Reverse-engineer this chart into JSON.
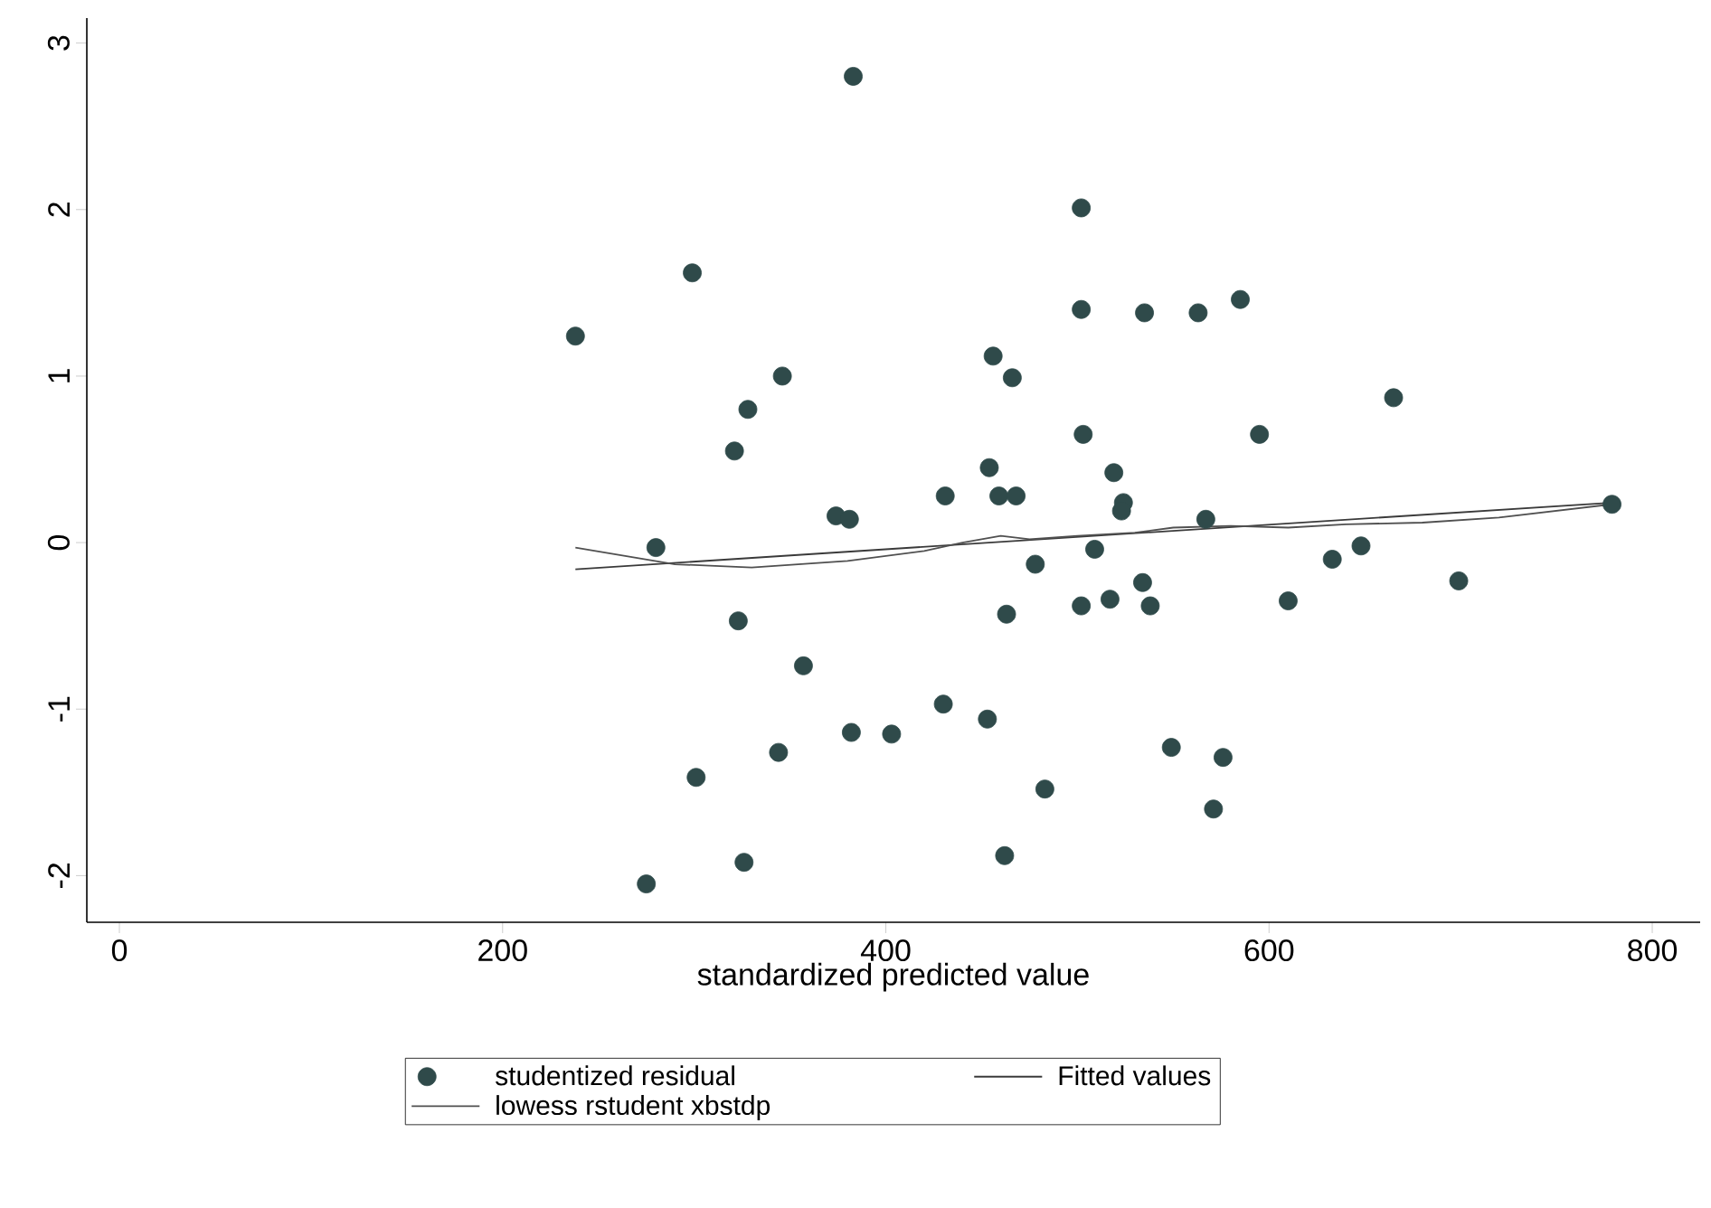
{
  "chart_data": {
    "type": "scatter",
    "xlabel": "standardized predicted value",
    "xlim": [
      -17,
      825
    ],
    "ylim": [
      -2.28,
      3.15
    ],
    "xticks": [
      0,
      200,
      400,
      600,
      800
    ],
    "yticks": [
      -2,
      -1,
      0,
      1,
      2,
      3
    ],
    "legend": "bottom",
    "grid": false,
    "series": [
      {
        "name": "studentized residual",
        "marker": "circle",
        "color": "#2f4a4a",
        "x": [
          238,
          299,
          346,
          328,
          321,
          280,
          323,
          357,
          344,
          301,
          326,
          275,
          383,
          502,
          502,
          456,
          466,
          503,
          454,
          431,
          459,
          468,
          374,
          381,
          519,
          524,
          523,
          509,
          478,
          502,
          517,
          463,
          382,
          403,
          430,
          453,
          483,
          462,
          535,
          563,
          585,
          534,
          538,
          567,
          549,
          576,
          571,
          595,
          665,
          779,
          633,
          648,
          699,
          610
        ],
        "values": [
          1.24,
          1.62,
          1.0,
          0.8,
          0.55,
          -0.03,
          -0.47,
          -0.74,
          -1.26,
          -1.41,
          -1.92,
          -2.05,
          2.8,
          2.01,
          1.4,
          1.12,
          0.99,
          0.65,
          0.45,
          0.28,
          0.28,
          0.28,
          0.16,
          0.14,
          0.42,
          0.24,
          0.19,
          -0.04,
          -0.13,
          -0.38,
          -0.34,
          -0.43,
          -1.14,
          -1.15,
          -0.97,
          -1.06,
          -1.48,
          -1.88,
          1.38,
          1.38,
          1.46,
          -0.24,
          -0.38,
          0.14,
          -1.23,
          -1.29,
          -1.6,
          0.65,
          0.87,
          0.23,
          -0.1,
          -0.02,
          -0.23,
          -0.35
        ]
      },
      {
        "name": "Fitted values",
        "type": "line",
        "marker": "none",
        "line_style": "solid",
        "color": "#3a3a3a",
        "x": [
          238,
          779
        ],
        "values": [
          -0.16,
          0.24
        ]
      },
      {
        "name": "lowess rstudent xbstdp",
        "type": "line",
        "marker": "none",
        "line_style": "solid",
        "color": "#505050",
        "x": [
          238,
          290,
          330,
          380,
          420,
          440,
          460,
          475,
          500,
          530,
          550,
          580,
          610,
          640,
          680,
          720,
          779
        ],
        "values": [
          -0.03,
          -0.13,
          -0.15,
          -0.11,
          -0.05,
          0.0,
          0.04,
          0.02,
          0.04,
          0.06,
          0.09,
          0.1,
          0.09,
          0.11,
          0.12,
          0.15,
          0.23
        ]
      }
    ]
  }
}
